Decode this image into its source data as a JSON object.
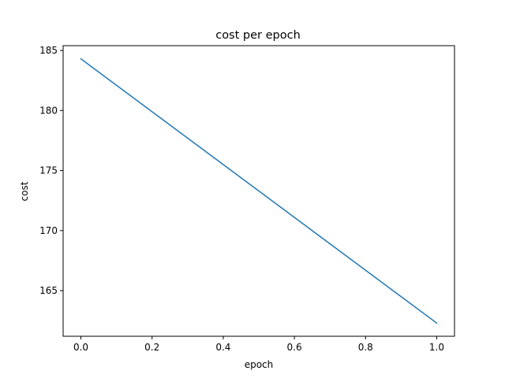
{
  "chart_data": {
    "type": "line",
    "title": "cost per epoch",
    "xlabel": "epoch",
    "ylabel": "cost",
    "xlim": [
      -0.05,
      1.05
    ],
    "ylim": [
      161.2,
      185.4
    ],
    "xticks": [
      0.0,
      0.2,
      0.4,
      0.6,
      0.8,
      1.0
    ],
    "xtick_labels": [
      "0.0",
      "0.2",
      "0.4",
      "0.6",
      "0.8",
      "1.0"
    ],
    "yticks": [
      165,
      170,
      175,
      180,
      185
    ],
    "ytick_labels": [
      "165",
      "170",
      "175",
      "180",
      "185"
    ],
    "grid": false,
    "series": [
      {
        "color": "#1f77b4",
        "x": [
          0.0,
          1.0
        ],
        "y": [
          184.3,
          162.3
        ]
      }
    ]
  }
}
